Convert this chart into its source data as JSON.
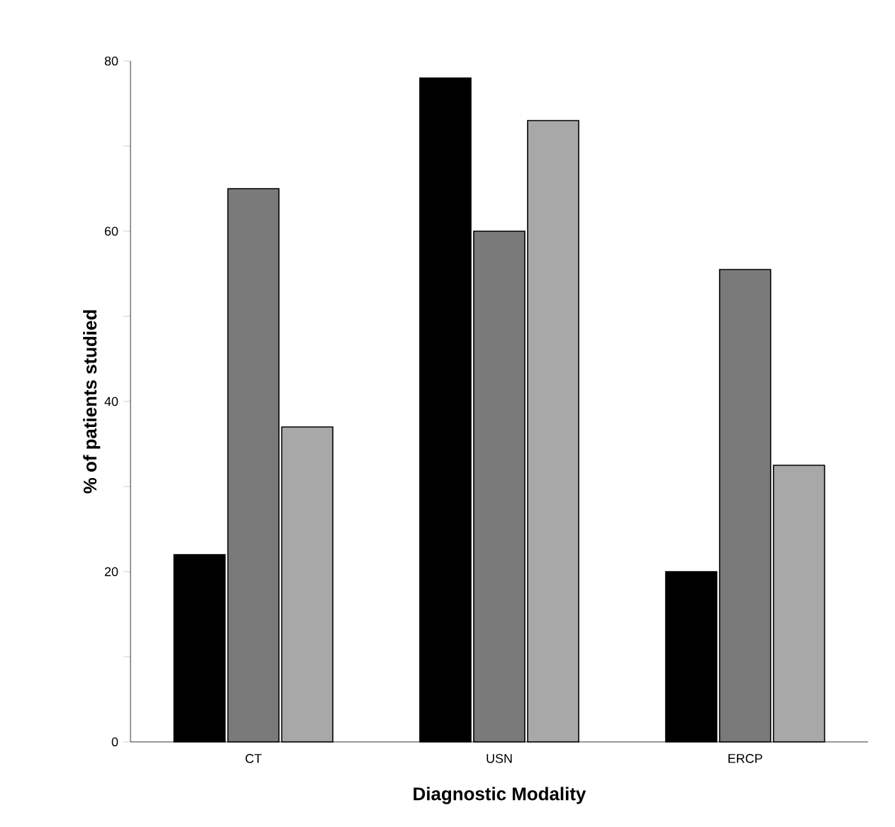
{
  "chart_data": {
    "type": "bar",
    "xlabel": "Diagnostic  Modality",
    "ylabel": "% of patients studied",
    "categories": [
      "CT",
      "USN",
      "ERCP"
    ],
    "series": [
      {
        "color": "#000000",
        "values": [
          22,
          78,
          20
        ]
      },
      {
        "color": "#7a7a7a",
        "values": [
          65,
          60,
          55.5
        ]
      },
      {
        "color": "#a8a8a8",
        "values": [
          37,
          73,
          32.5
        ]
      }
    ],
    "ylim": [
      0,
      80
    ],
    "yticks": [
      0,
      {
        "value": 10,
        "label": null
      },
      20,
      {
        "value": 30,
        "label": null
      },
      40,
      {
        "value": 50,
        "label": null
      },
      60,
      {
        "value": 70,
        "label": null
      },
      80
    ],
    "grid": false
  }
}
